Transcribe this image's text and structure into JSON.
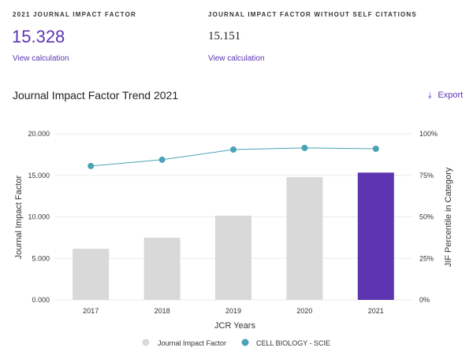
{
  "metrics": [
    {
      "label": "2021 JOURNAL IMPACT FACTOR",
      "value": "15.328",
      "link": "View calculation"
    },
    {
      "label": "JOURNAL IMPACT FACTOR WITHOUT SELF CITATIONS",
      "value": "15.151",
      "link": "View calculation"
    }
  ],
  "section": {
    "title": "Journal Impact Factor Trend 2021",
    "export": "Export"
  },
  "colors": {
    "accent": "#5e35b1",
    "bar": "#d9d9d9",
    "line": "#4aa3b5"
  },
  "chart_data": {
    "type": "bar",
    "categories": [
      "2017",
      "2018",
      "2019",
      "2020",
      "2021"
    ],
    "series": [
      {
        "name": "Journal Impact Factor",
        "type": "bar",
        "axis": "left",
        "values": [
          6.16,
          7.49,
          10.14,
          14.79,
          15.328
        ]
      },
      {
        "name": "CELL BIOLOGY - SCIE",
        "type": "line",
        "axis": "right",
        "values": [
          80.6,
          84.4,
          90.5,
          91.5,
          91.0
        ]
      }
    ],
    "xlabel": "JCR Years",
    "ylabel": "Journal Impact Factor",
    "y2label": "JIF Percentile in Category",
    "ylim": [
      0,
      20
    ],
    "y2lim": [
      0,
      100
    ],
    "yticks": [
      "0.000",
      "5.000",
      "10.000",
      "15.000",
      "20.000"
    ],
    "y2ticks": [
      "0%",
      "25%",
      "50%",
      "75%",
      "100%"
    ],
    "highlight": "2021",
    "grid": true,
    "legend": "bottom"
  }
}
